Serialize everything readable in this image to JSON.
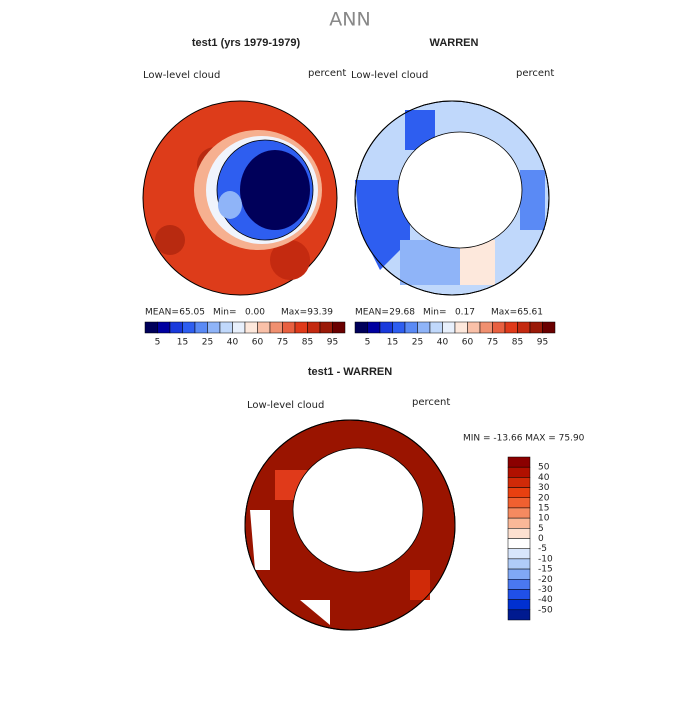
{
  "title": "ANN",
  "panels": [
    {
      "title": "test1 (yrs 1979-1979)",
      "variable": "Low-level cloud",
      "units": "percent",
      "stats": [
        {
          "label": "MEAN=",
          "value": "65.05"
        },
        {
          "label": "Min=",
          "value": "0.00"
        },
        {
          "label": "Max=",
          "value": "93.39"
        }
      ]
    },
    {
      "title": "WARREN",
      "variable": "Low-level cloud",
      "units": "percent",
      "stats": [
        {
          "label": "MEAN=",
          "value": "29.68"
        },
        {
          "label": "Min=",
          "value": "0.17"
        },
        {
          "label": "Max=",
          "value": "65.61"
        }
      ]
    },
    {
      "title": "test1 - WARREN",
      "variable": "Low-level cloud",
      "units": "percent",
      "range": "MIN = -13.66 MAX =  75.90"
    }
  ],
  "colorbar": {
    "labels": [
      5,
      15,
      25,
      40,
      60,
      75,
      85,
      95
    ],
    "colors": [
      "#00005a",
      "#0000a0",
      "#1a3adc",
      "#2e5ef0",
      "#5a8af5",
      "#8fb4f8",
      "#c0d8fb",
      "#e8f0fc",
      "#fde8dc",
      "#f9c0a8",
      "#f09070",
      "#e86040",
      "#e03a1a",
      "#c42a10",
      "#9a1a08",
      "#6a0000"
    ]
  },
  "diff_colorbar": {
    "labels": [
      50,
      40,
      30,
      20,
      15,
      10,
      5,
      0,
      -5,
      -10,
      -15,
      -20,
      -30,
      -40,
      -50
    ],
    "colors": [
      "#8b0000",
      "#b01000",
      "#d02a08",
      "#e84010",
      "#f06030",
      "#f58a60",
      "#fab898",
      "#fde0d0",
      "#ffffff",
      "#d8e6fc",
      "#b0ccf8",
      "#80a8f5",
      "#4a78f0",
      "#2050e8",
      "#0030d0",
      "#001a90"
    ]
  }
}
